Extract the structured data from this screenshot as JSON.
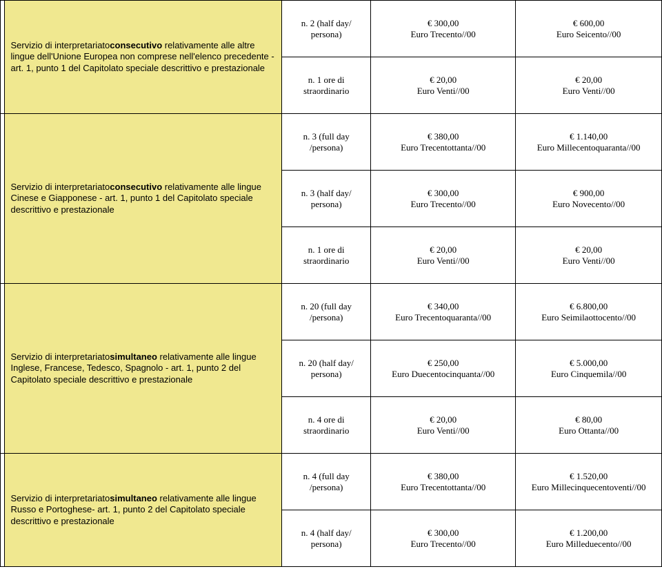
{
  "colors": {
    "desc_bg": "#f0e890",
    "border": "#000000",
    "page_bg": "#ffffff"
  },
  "groups": [
    {
      "desc_pre": "Servizio di interpretariato",
      "desc_bold": "consecutivo",
      "desc_post": " relativamente alle altre  lingue dell'Unione Europea non comprese nell'elenco precedente - art. 1, punto 1 del Capitolato speciale descrittivo e prestazionale",
      "rows": [
        {
          "qty": "n. 2  (half day/ persona)",
          "unit": "€ 300,00\nEuro Trecento//00",
          "total": "€ 600,00\nEuro Seicento//00"
        },
        {
          "qty": "n. 1 ore di straordinario",
          "unit": "€ 20,00\nEuro Venti//00",
          "total": "€ 20,00\nEuro Venti//00"
        }
      ]
    },
    {
      "desc_pre": "Servizio di interpretariato",
      "desc_bold": "consecutivo",
      "desc_post": " relativamente alle lingue Cinese e Giapponese - art. 1, punto 1 del Capitolato speciale descrittivo e prestazionale",
      "rows": [
        {
          "qty": "n. 3  (full day /persona)",
          "unit": "€ 380,00\nEuro Trecentottanta//00",
          "total": "€ 1.140,00\nEuro Millecentoquaranta//00"
        },
        {
          "qty": "n. 3  (half day/ persona)",
          "unit": "€ 300,00\nEuro Trecento//00",
          "total": "€ 900,00\nEuro Novecento//00"
        },
        {
          "qty": "n. 1 ore di straordinario",
          "unit": "€ 20,00\nEuro Venti//00",
          "total": "€ 20,00\nEuro Venti//00"
        }
      ]
    },
    {
      "desc_pre": "Servizio di interpretariato",
      "desc_bold": "simultaneo",
      "desc_post": " relativamente alle lingue Inglese, Francese, Tedesco, Spagnolo - art. 1, punto 2 del Capitolato speciale descrittivo e prestazionale",
      "rows": [
        {
          "qty": "n. 20  (full day /persona)",
          "unit": "€ 340,00\nEuro Trecentoquaranta//00",
          "total": "€ 6.800,00\nEuro Seimilaottocento//00"
        },
        {
          "qty": "n. 20  (half day/ persona)",
          "unit": "€ 250,00\nEuro Duecentocinquanta//00",
          "total": "€ 5.000,00\nEuro Cinquemila//00"
        },
        {
          "qty": "n. 4 ore di straordinario",
          "unit": "€ 20,00\nEuro Venti//00",
          "total": "€ 80,00\nEuro Ottanta//00"
        }
      ]
    },
    {
      "desc_pre": "Servizio di interpretariato",
      "desc_bold": "simultaneo",
      "desc_post": " relativamente alle lingue Russo e Portoghese- art. 1, punto 2 del Capitolato speciale descrittivo e prestazionale",
      "rows": [
        {
          "qty": "n. 4  (full day /persona)",
          "unit": "€ 380,00\nEuro Trecentottanta//00",
          "total": "€ 1.520,00\nEuro Millecinquecentoventi//00"
        },
        {
          "qty": "n. 4  (half day/ persona)",
          "unit": "€ 300,00\nEuro Trecento//00",
          "total": "€ 1.200,00\nEuro Milleduecento//00"
        }
      ]
    }
  ]
}
